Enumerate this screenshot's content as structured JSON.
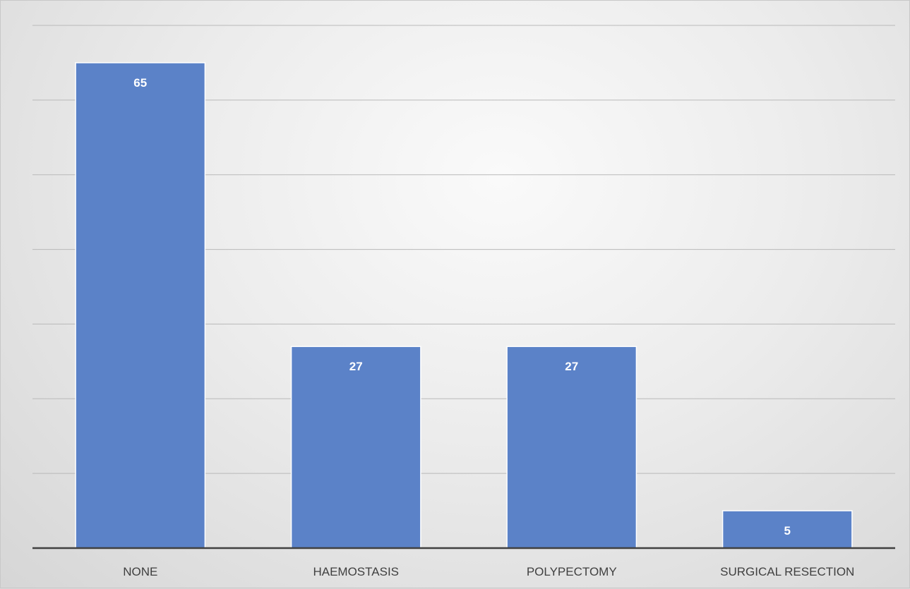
{
  "chart_data": {
    "type": "bar",
    "categories": [
      "NONE",
      "HAEMOSTASIS",
      "POLYPECTOMY",
      "SURGICAL RESECTION"
    ],
    "values": [
      65,
      27,
      27,
      5
    ],
    "title": "",
    "xlabel": "",
    "ylabel": "",
    "ylim": [
      0,
      70
    ],
    "gridlines": true,
    "y_tick_labels_visible": false,
    "data_labels": true,
    "colors": {
      "bar": "#5b82c8",
      "data_label": "#ffffff",
      "tick_label": "#404040",
      "gridline": "#b9b9b9",
      "axis": "#404040"
    }
  }
}
